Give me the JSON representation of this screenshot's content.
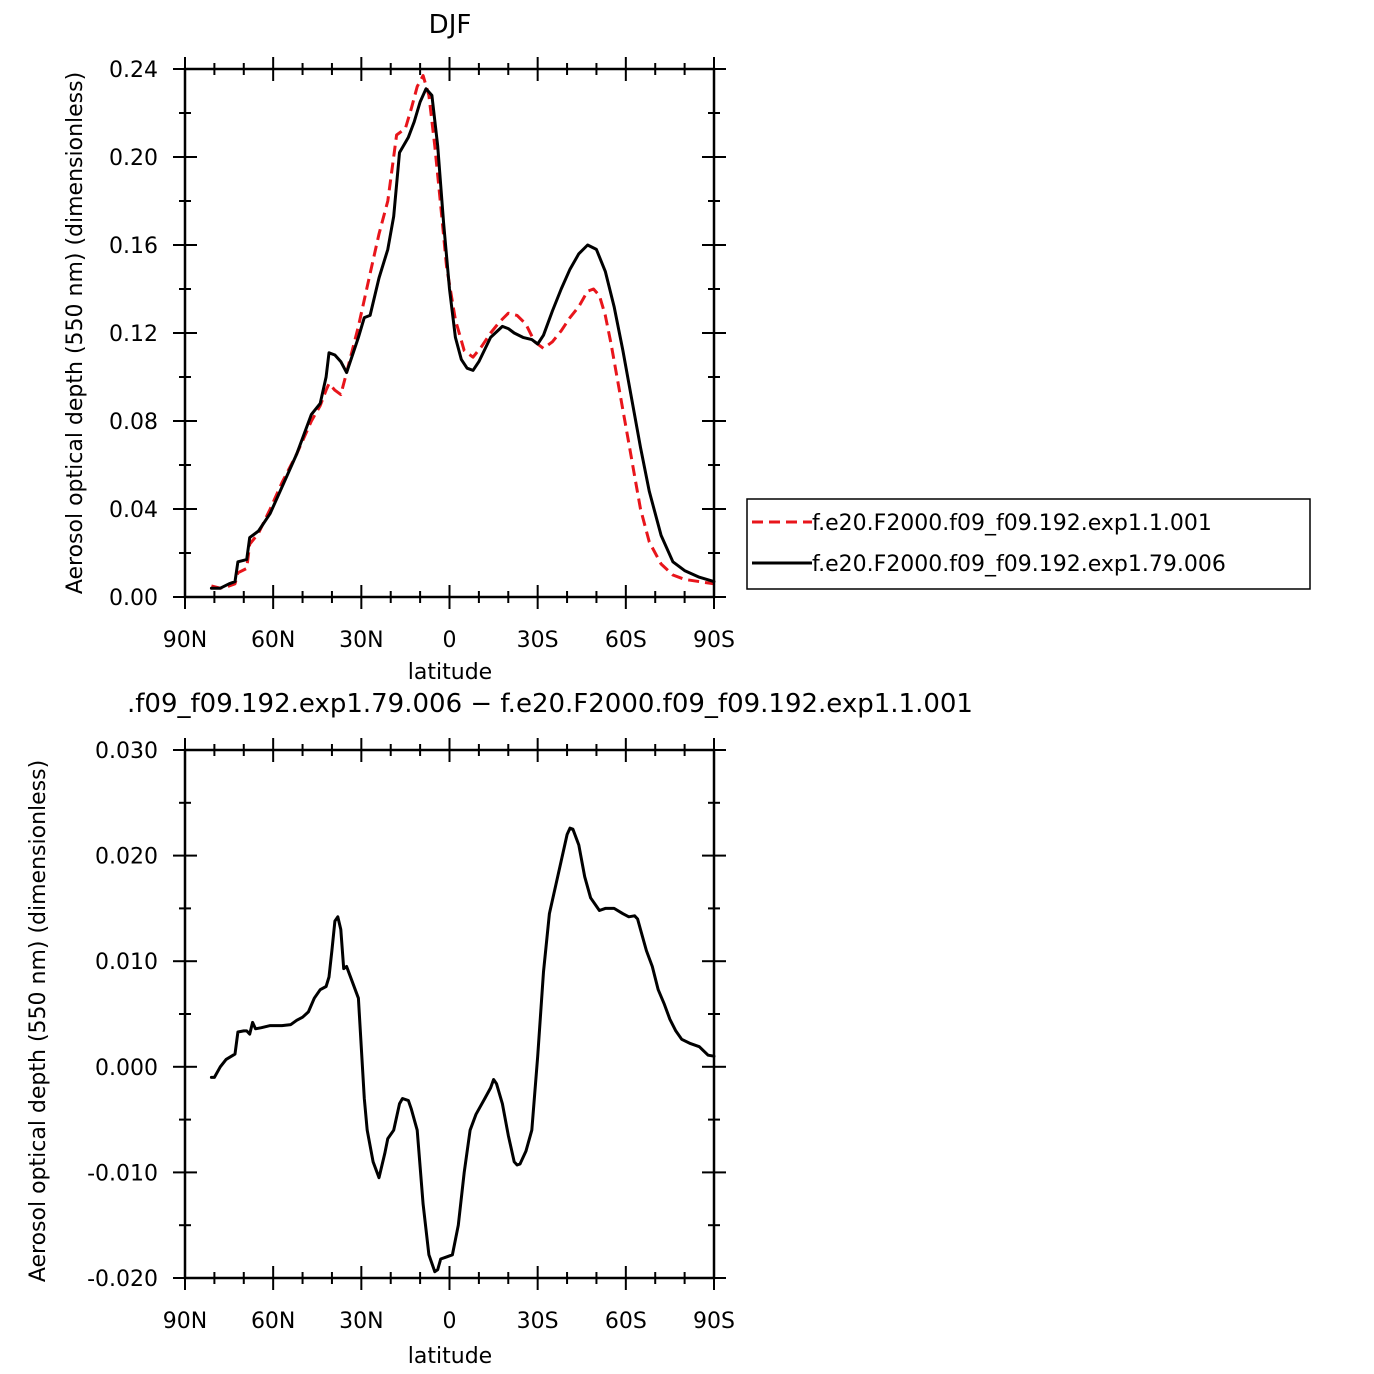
{
  "chart_data": [
    {
      "type": "line",
      "title": "DJF",
      "xlabel": "latitude",
      "ylabel": "Aerosol optical depth (550 nm) (dimensionless)",
      "xlim": [
        -90,
        90
      ],
      "ylim": [
        0.0,
        0.24
      ],
      "x_ticks": [
        "90N",
        "60N",
        "30N",
        "0",
        "30S",
        "60S",
        "90S"
      ],
      "y_ticks": [
        "0.00",
        "0.04",
        "0.08",
        "0.12",
        "0.16",
        "0.20",
        "0.24"
      ],
      "legend": "right",
      "series": [
        {
          "name": "f.e20.F2000.f09_f09.192.exp1.1.001",
          "color": "#e8151b",
          "dash": "dashed",
          "x": [
            -81,
            -78,
            -75,
            -73,
            -72,
            -69,
            -68,
            -65,
            -61,
            -57,
            -52,
            -47,
            -44,
            -42,
            -41,
            -39,
            -37,
            -35,
            -31,
            -27,
            -24,
            -21,
            -18,
            -15,
            -13,
            -11,
            -9,
            -7,
            -5,
            -3,
            -1,
            2,
            5,
            8,
            11,
            14,
            17,
            20,
            23,
            26,
            29,
            32,
            35,
            38,
            41,
            44,
            47,
            49,
            51,
            53,
            55,
            57,
            59,
            61,
            63,
            65,
            68,
            72,
            76,
            80,
            85,
            90
          ],
          "y": [
            0.005,
            0.004,
            0.005,
            0.006,
            0.011,
            0.013,
            0.024,
            0.029,
            0.04,
            0.052,
            0.065,
            0.08,
            0.087,
            0.094,
            0.097,
            0.094,
            0.092,
            0.102,
            0.123,
            0.147,
            0.165,
            0.18,
            0.21,
            0.213,
            0.222,
            0.232,
            0.237,
            0.228,
            0.205,
            0.178,
            0.15,
            0.126,
            0.112,
            0.109,
            0.114,
            0.12,
            0.125,
            0.129,
            0.128,
            0.124,
            0.116,
            0.113,
            0.116,
            0.121,
            0.127,
            0.132,
            0.139,
            0.14,
            0.137,
            0.128,
            0.115,
            0.1,
            0.085,
            0.07,
            0.055,
            0.04,
            0.025,
            0.015,
            0.01,
            0.008,
            0.007,
            0.006
          ]
        },
        {
          "name": "f.e20.F2000.f09_f09.192.exp1.79.006",
          "color": "#000000",
          "dash": "solid",
          "x": [
            -81,
            -78,
            -75,
            -73,
            -72,
            -69,
            -68,
            -65,
            -61,
            -57,
            -52,
            -47,
            -44,
            -42,
            -41,
            -39,
            -37,
            -35,
            -31,
            -29,
            -27,
            -24,
            -21,
            -19,
            -17,
            -14,
            -12,
            -10,
            -8,
            -6,
            -4,
            -2,
            0,
            2,
            4,
            6,
            8,
            10,
            14,
            18,
            20,
            22,
            25,
            28,
            30,
            32,
            35,
            38,
            41,
            44,
            47,
            50,
            53,
            56,
            59,
            62,
            65,
            68,
            72,
            76,
            80,
            85,
            90
          ],
          "y": [
            0.004,
            0.004,
            0.006,
            0.007,
            0.016,
            0.017,
            0.027,
            0.03,
            0.038,
            0.05,
            0.065,
            0.083,
            0.088,
            0.1,
            0.111,
            0.11,
            0.107,
            0.102,
            0.118,
            0.127,
            0.128,
            0.145,
            0.158,
            0.173,
            0.202,
            0.209,
            0.216,
            0.225,
            0.231,
            0.228,
            0.205,
            0.17,
            0.14,
            0.118,
            0.108,
            0.104,
            0.103,
            0.107,
            0.118,
            0.123,
            0.122,
            0.12,
            0.118,
            0.117,
            0.115,
            0.119,
            0.13,
            0.14,
            0.149,
            0.156,
            0.16,
            0.158,
            0.148,
            0.132,
            0.112,
            0.09,
            0.068,
            0.048,
            0.028,
            0.016,
            0.012,
            0.009,
            0.007
          ]
        }
      ]
    },
    {
      "type": "line",
      "title": ".f09_f09.192.exp1.79.006 − f.e20.F2000.f09_f09.192.exp1.1.001",
      "xlabel": "latitude",
      "ylabel": "Aerosol optical depth (550 nm) (dimensionless)",
      "xlim": [
        -90,
        90
      ],
      "ylim": [
        -0.02,
        0.03
      ],
      "x_ticks": [
        "90N",
        "60N",
        "30N",
        "0",
        "30S",
        "60S",
        "90S"
      ],
      "y_ticks": [
        "-0.020",
        "-0.010",
        "0.000",
        "0.010",
        "0.020",
        "0.030"
      ],
      "series": [
        {
          "color": "#000000",
          "dash": "solid",
          "x": [
            -81,
            -80,
            -78,
            -76,
            -73,
            -72,
            -70,
            -69,
            -68,
            -67,
            -66,
            -64,
            -61,
            -57,
            -54,
            -52,
            -50,
            -48,
            -46,
            -44,
            -42,
            -41,
            -40,
            -39,
            -38,
            -37,
            -36,
            -35,
            -33,
            -31,
            -29,
            -28,
            -26,
            -24,
            -22,
            -21,
            -19,
            -17,
            -16,
            -14,
            -13,
            -11,
            -9,
            -7,
            -5,
            -4,
            -3,
            -1,
            1,
            3,
            5,
            7,
            9,
            12,
            14,
            15,
            16,
            18,
            20,
            22,
            23,
            24,
            26,
            28,
            30,
            32,
            34,
            36,
            38,
            40,
            41,
            42,
            44,
            46,
            48,
            51,
            53,
            56,
            59,
            61,
            63,
            64,
            65,
            67,
            69,
            71,
            73,
            75,
            77,
            79,
            82,
            85,
            88,
            90
          ],
          "y": [
            -0.001,
            -0.001,
            0.0,
            0.0007,
            0.0012,
            0.0033,
            0.0034,
            0.0034,
            0.0031,
            0.0042,
            0.0036,
            0.0037,
            0.0039,
            0.0039,
            0.004,
            0.0044,
            0.0047,
            0.0052,
            0.0065,
            0.0073,
            0.0076,
            0.0085,
            0.011,
            0.0138,
            0.0142,
            0.013,
            0.0093,
            0.0095,
            0.008,
            0.0065,
            -0.003,
            -0.006,
            -0.009,
            -0.0105,
            -0.0082,
            -0.0068,
            -0.006,
            -0.0035,
            -0.003,
            -0.0032,
            -0.004,
            -0.006,
            -0.013,
            -0.0178,
            -0.0194,
            -0.0192,
            -0.0182,
            -0.018,
            -0.0178,
            -0.015,
            -0.01,
            -0.006,
            -0.0045,
            -0.003,
            -0.002,
            -0.0012,
            -0.0016,
            -0.0035,
            -0.0065,
            -0.009,
            -0.0093,
            -0.0092,
            -0.008,
            -0.006,
            0.001,
            0.009,
            0.0145,
            0.017,
            0.0195,
            0.022,
            0.0226,
            0.0225,
            0.021,
            0.018,
            0.016,
            0.0148,
            0.015,
            0.015,
            0.0145,
            0.0142,
            0.0143,
            0.014,
            0.013,
            0.011,
            0.0095,
            0.0073,
            0.006,
            0.0045,
            0.0034,
            0.0026,
            0.0022,
            0.0019,
            0.0011,
            0.001
          ]
        }
      ]
    }
  ]
}
